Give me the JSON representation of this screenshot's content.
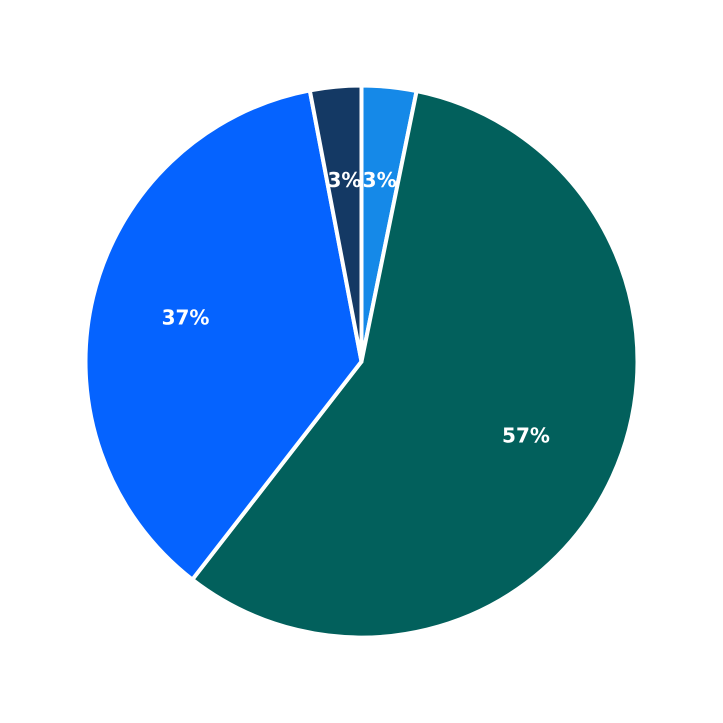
{
  "chart_data": {
    "type": "pie",
    "title": "",
    "start": "top",
    "direction": "clockwise",
    "slices": [
      {
        "label": "3%",
        "value": 3.2,
        "color": "#1589e8"
      },
      {
        "label": "57%",
        "value": 57.3,
        "color": "#02605c"
      },
      {
        "label": "37%",
        "value": 36.5,
        "color": "#0563ff"
      },
      {
        "label": "3%",
        "value": 3.0,
        "color": "#143964"
      }
    ]
  }
}
